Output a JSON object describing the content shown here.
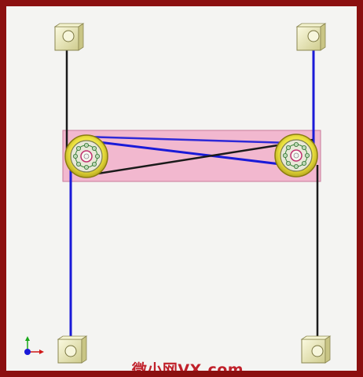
{
  "watermark": {
    "text": "微小网VX.com",
    "color": "#c0202a"
  },
  "scene": {
    "description_colors": {
      "frame": "#8b1010",
      "background": "#f4f4f2",
      "plate": "#f2b8cf",
      "plate_edge": "#c87a9a",
      "belt_blue": "#1a1ad8",
      "belt_black": "#1a1a1a",
      "pulley": "#f0e640",
      "block": "#ecebc0"
    },
    "icons": {
      "axis_triad": "xyz-axis-icon",
      "anchor_blocks": "bolt-block-icon",
      "pulleys": "bearing-pulley-icon"
    }
  }
}
